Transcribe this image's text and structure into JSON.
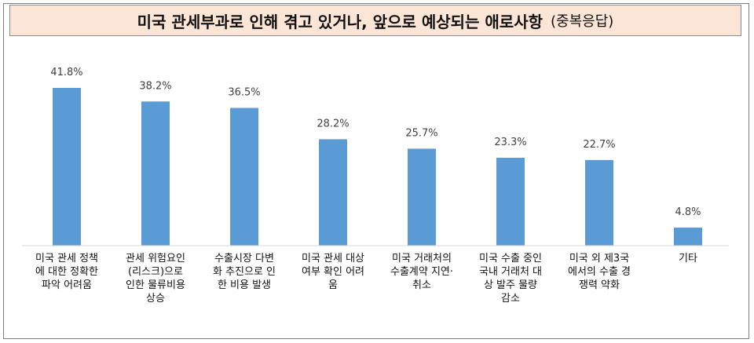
{
  "chart_data": {
    "type": "bar",
    "title": "미국 관세부과로 인해 겪고 있거나, 앞으로 예상되는 애로사항",
    "subtitle": "(중복응답)",
    "categories": [
      [
        "미국 관세 정책",
        "에 대한 정확한",
        "파악 어려움"
      ],
      [
        "관세 위험요인",
        "(리스크)으로",
        "인한 물류비용",
        "상승"
      ],
      [
        "수출시장 다변",
        "화 추진으로 인",
        "한 비용 발생"
      ],
      [
        "미국 관세 대상",
        "여부 확인 어려",
        "움"
      ],
      [
        "미국 거래처의",
        "수출계약 지연·",
        "취소"
      ],
      [
        "미국 수출 중인",
        "국내 거래처 대",
        "상 발주 물량",
        "감소"
      ],
      [
        "미국 외 제3국",
        "에서의 수출 경",
        "쟁력 약화"
      ],
      [
        "기타"
      ]
    ],
    "values": [
      41.8,
      38.2,
      36.5,
      28.2,
      25.7,
      23.3,
      22.7,
      4.8
    ],
    "value_labels": [
      "41.8%",
      "38.2%",
      "36.5%",
      "28.2%",
      "25.7%",
      "23.3%",
      "22.7%",
      "4.8%"
    ],
    "bar_color": "#5b9bd5",
    "ylim": [
      0,
      45
    ],
    "grid": false,
    "legend": "none"
  }
}
